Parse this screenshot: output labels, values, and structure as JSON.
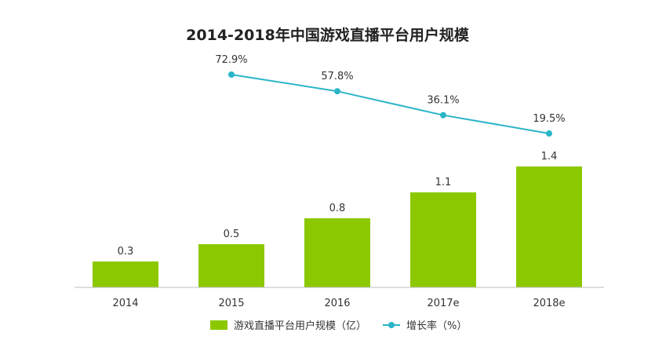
{
  "chart_data": {
    "type": "bar",
    "title": "2014-2018年中国游戏直播平台用户规模",
    "categories": [
      "2014",
      "2015",
      "2016",
      "2017e",
      "2018e"
    ],
    "series": [
      {
        "name": "游戏直播平台用户规模（亿）",
        "type": "bar",
        "values": [
          0.3,
          0.5,
          0.8,
          1.1,
          1.4
        ],
        "labels": [
          "0.3",
          "0.5",
          "0.8",
          "1.1",
          "1.4"
        ],
        "color": "#8cc800"
      },
      {
        "name": "增长率（%）",
        "type": "line",
        "values": [
          null,
          72.9,
          57.8,
          36.1,
          19.5
        ],
        "labels": [
          "",
          "72.9%",
          "57.8%",
          "36.1%",
          "19.5%"
        ],
        "color": "#2bb5c8"
      }
    ],
    "legend_position": "bottom",
    "grid": false
  }
}
